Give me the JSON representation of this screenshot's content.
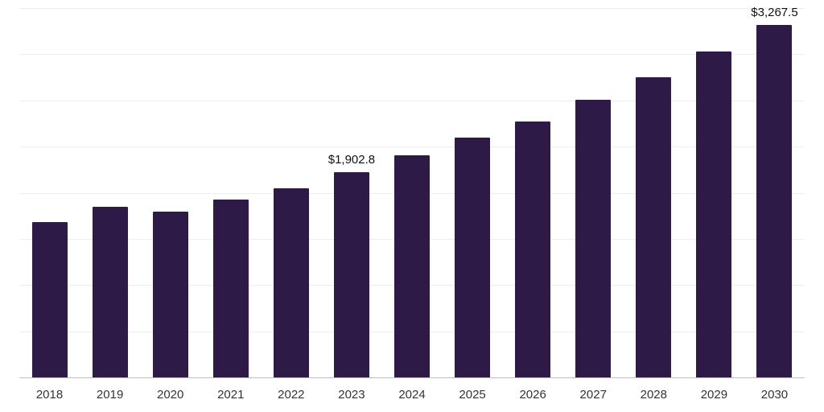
{
  "chart_data": {
    "type": "bar",
    "title": "",
    "xlabel": "",
    "ylabel": "",
    "categories": [
      "2018",
      "2019",
      "2020",
      "2021",
      "2022",
      "2023",
      "2024",
      "2025",
      "2026",
      "2027",
      "2028",
      "2029",
      "2030"
    ],
    "values": [
      1440,
      1580,
      1535,
      1645,
      1755,
      1902.8,
      2060,
      2220,
      2370,
      2570,
      2785,
      3020,
      3267.5
    ],
    "ylim": [
      0,
      3430
    ],
    "grid": true,
    "gridline_segments": 8,
    "legend": "none",
    "bar_color": "#2e1a47",
    "annotations": [
      {
        "category": "2023",
        "label": "$1,902.8"
      },
      {
        "category": "2030",
        "label": "$3,267.5"
      }
    ]
  },
  "colors": {
    "background": "#ffffff",
    "gridline": "#ededed",
    "axis_line": "#bdbdbd",
    "tick_label": "#333333",
    "annotation_text": "#111111"
  }
}
